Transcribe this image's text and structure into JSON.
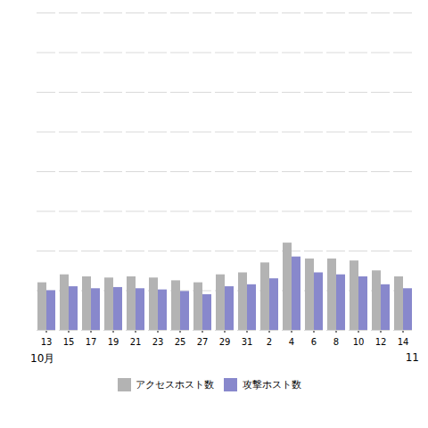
{
  "chart_data": {
    "type": "bar",
    "categories": [
      "13",
      "15",
      "17",
      "19",
      "21",
      "23",
      "25",
      "27",
      "29",
      "31",
      "2",
      "4",
      "6",
      "8",
      "10",
      "12",
      "14"
    ],
    "series": [
      {
        "name": "アクセスホスト数",
        "color": "#b3b3b3",
        "values": [
          12000,
          14000,
          13500,
          13200,
          13500,
          13200,
          12500,
          12000,
          14000,
          14500,
          17000,
          22000,
          18000,
          18000,
          17500,
          15000,
          13500
        ]
      },
      {
        "name": "攻撃ホスト数",
        "color": "#8888cc",
        "values": [
          10000,
          11000,
          10500,
          10800,
          10500,
          10200,
          9800,
          9000,
          11000,
          11500,
          13000,
          18500,
          14500,
          14000,
          13500,
          11500,
          10500
        ]
      }
    ],
    "annotations": [
      "10月",
      "11"
    ],
    "ylim": [
      0,
      80000
    ],
    "yticks": [
      0,
      10000,
      20000,
      30000,
      40000,
      50000,
      60000,
      70000,
      80000
    ],
    "grid": true,
    "tick_labels": "x",
    "legend": "lower center"
  }
}
